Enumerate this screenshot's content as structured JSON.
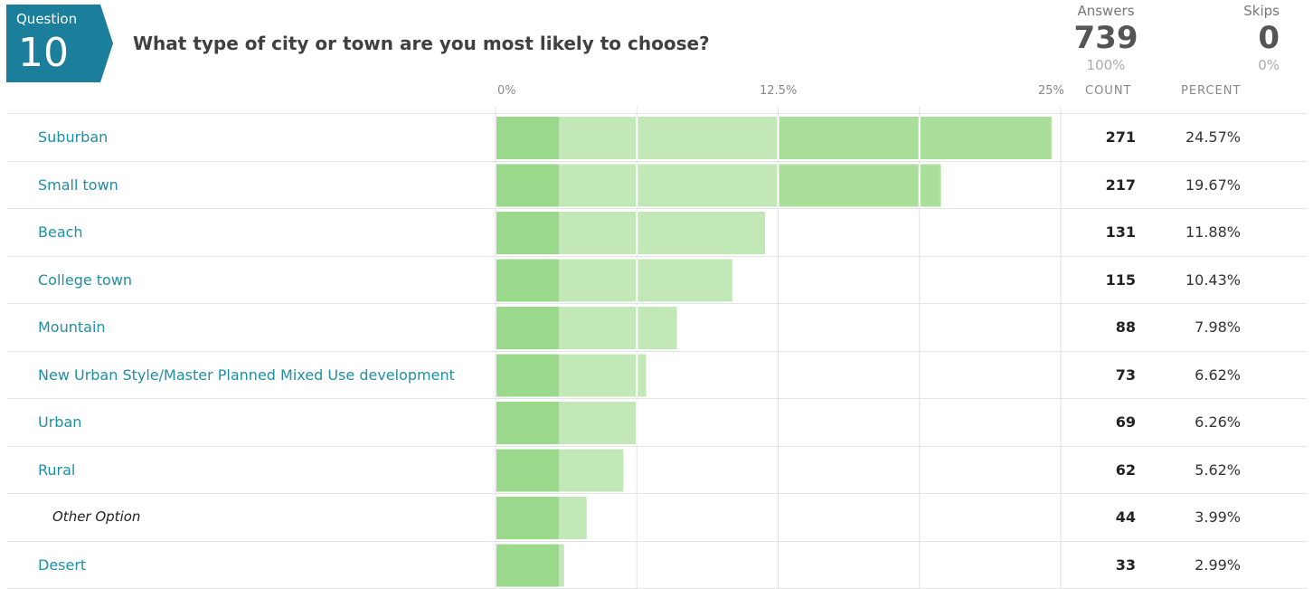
{
  "question": {
    "label": "Question",
    "number": "10",
    "title": "What type of city or town are you most likely to choose?"
  },
  "stats": {
    "answers_label": "Answers",
    "answers_value": "739",
    "answers_pct": "100%",
    "skips_label": "Skips",
    "skips_value": "0",
    "skips_pct": "0%"
  },
  "columns": {
    "count": "COUNT",
    "percent": "PERCENT"
  },
  "colors": {
    "badge": "#1b7f9b",
    "bar_dark": "#9ad88b",
    "bar_mid": "#a9df9b",
    "bar_light": "#c2e8b7",
    "label": "#1f8fa6"
  },
  "chart_data": {
    "type": "bar",
    "orientation": "horizontal",
    "xlim": [
      0,
      25
    ],
    "ticks": [
      "0%",
      "12.5%",
      "25%"
    ],
    "categories": [
      "Suburban",
      "Small town",
      "Beach",
      "College town",
      "Mountain",
      "New Urban Style/Master Planned Mixed Use development",
      "Urban",
      "Rural",
      "Other Option",
      "Desert"
    ],
    "counts": [
      "271",
      "217",
      "131",
      "115",
      "88",
      "73",
      "69",
      "62",
      "44",
      "33"
    ],
    "percents": [
      "24.57%",
      "19.67%",
      "11.88%",
      "10.43%",
      "7.98%",
      "6.62%",
      "6.26%",
      "5.62%",
      "3.99%",
      "2.99%"
    ],
    "values": [
      24.57,
      19.67,
      11.88,
      10.43,
      7.98,
      6.62,
      6.26,
      5.62,
      3.99,
      2.99
    ]
  }
}
